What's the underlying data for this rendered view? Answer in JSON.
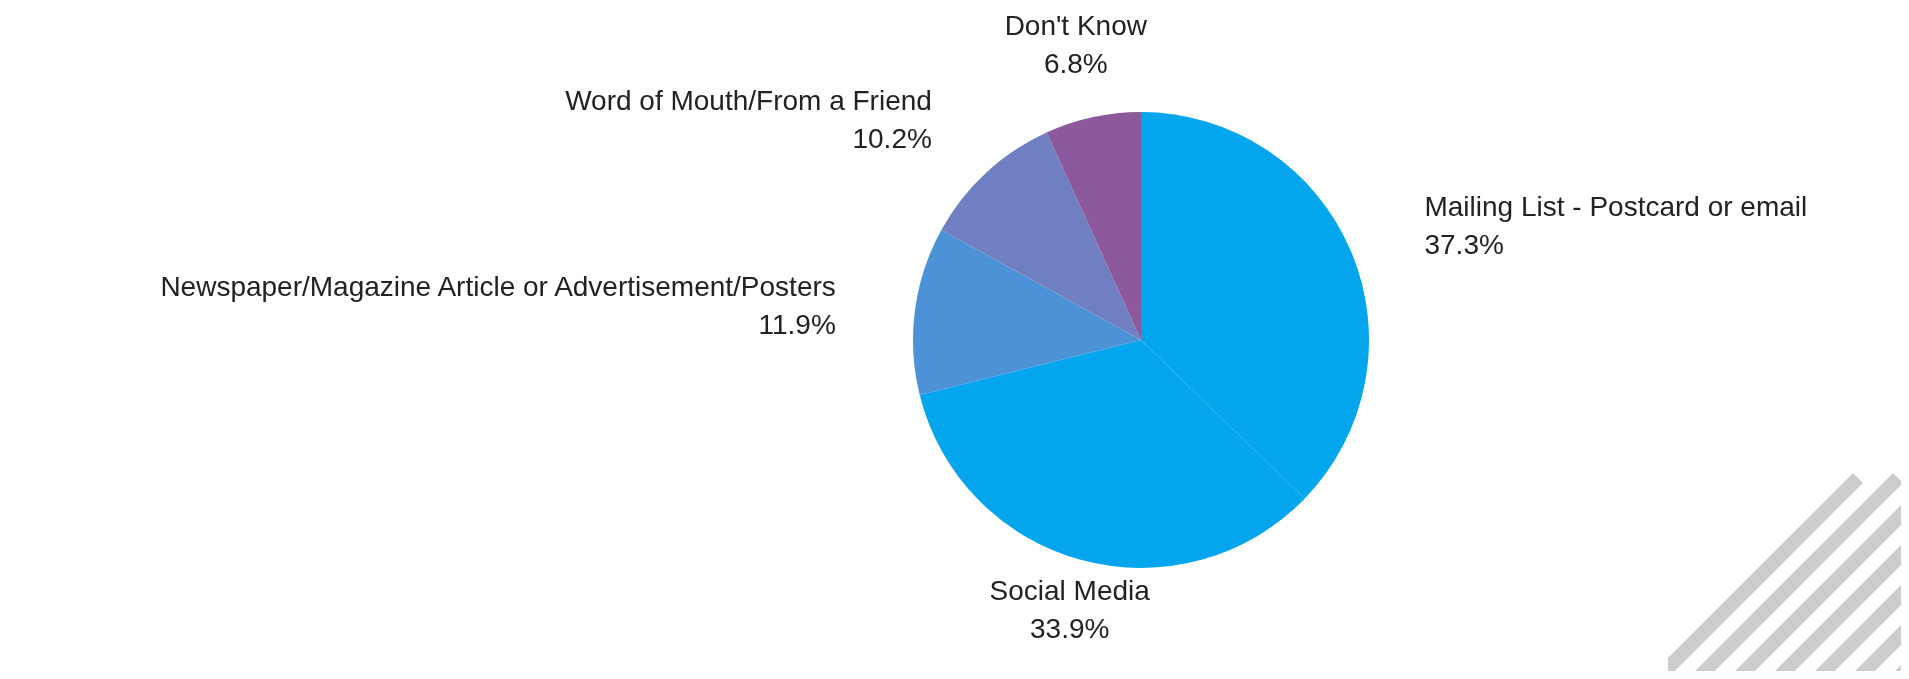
{
  "chart_data": {
    "type": "pie",
    "categories": [
      "Mailing List - Postcard or email",
      "Social Media",
      "Newspaper/Magazine Article or Advertisement/Posters",
      "Word of Mouth/From a Friend",
      "Don't Know"
    ],
    "values": [
      37.3,
      33.9,
      11.9,
      10.2,
      6.8
    ],
    "value_labels": [
      "37.3%",
      "33.9%",
      "11.9%",
      "10.2%",
      "6.8%"
    ],
    "colors": [
      "#03a6ed",
      "#03a5ec",
      "#4b92d6",
      "#6f7fc2",
      "#8c5a9c"
    ],
    "legend": false
  }
}
